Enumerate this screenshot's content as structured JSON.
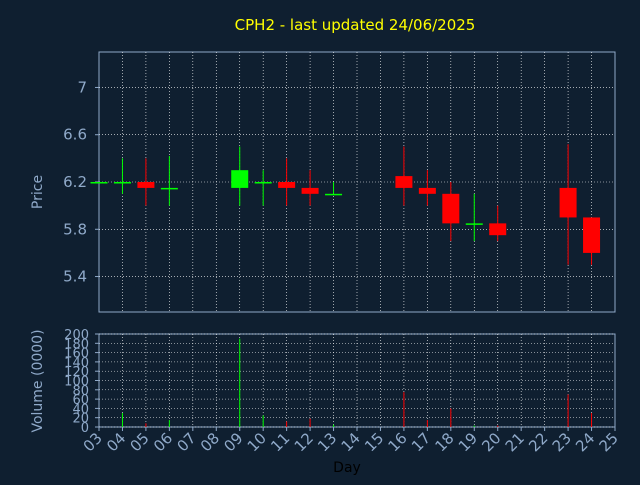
{
  "chart_data": {
    "type": "candlestick",
    "title": "CPH2 - last updated 24/06/2025",
    "xlabel": "Day",
    "ylabel_price": "Price",
    "ylabel_volume": "Volume (0000)",
    "x_ticks": [
      "03",
      "04",
      "05",
      "06",
      "07",
      "08",
      "09",
      "10",
      "11",
      "12",
      "13",
      "14",
      "15",
      "16",
      "17",
      "18",
      "19",
      "20",
      "21",
      "22",
      "23",
      "24",
      "25"
    ],
    "price_ylim": [
      5.1,
      7.3
    ],
    "price_ticks": [
      "5.4",
      "5.8",
      "6.2",
      "6.6",
      "7"
    ],
    "volume_ylim": [
      0,
      200
    ],
    "volume_ticks": [
      "0",
      "20",
      "40",
      "60",
      "80",
      "100",
      "120",
      "140",
      "160",
      "180",
      "200"
    ],
    "grid": true,
    "colors": {
      "up": "#00ff00",
      "down": "#ff0000",
      "background": "#0f1f30",
      "grid": "#ffffff",
      "axis": "#8fa9c9",
      "title": "#ffff00"
    },
    "candles": [
      {
        "day": "03",
        "open": 6.2,
        "high": 6.2,
        "low": 6.2,
        "close": 6.2,
        "volume": 0
      },
      {
        "day": "04",
        "open": 6.2,
        "high": 6.4,
        "low": 6.1,
        "close": 6.2,
        "volume": 30
      },
      {
        "day": "05",
        "open": 6.2,
        "high": 6.4,
        "low": 6.0,
        "close": 6.15,
        "volume": 8
      },
      {
        "day": "06",
        "open": 6.15,
        "high": 6.42,
        "low": 6.0,
        "close": 6.15,
        "volume": 15
      },
      {
        "day": "09",
        "open": 6.15,
        "high": 6.5,
        "low": 6.0,
        "close": 6.3,
        "volume": 190
      },
      {
        "day": "10",
        "open": 6.2,
        "high": 6.3,
        "low": 6.0,
        "close": 6.2,
        "volume": 25
      },
      {
        "day": "11",
        "open": 6.2,
        "high": 6.4,
        "low": 6.0,
        "close": 6.15,
        "volume": 12
      },
      {
        "day": "12",
        "open": 6.15,
        "high": 6.3,
        "low": 6.0,
        "close": 6.1,
        "volume": 18
      },
      {
        "day": "13",
        "open": 6.1,
        "high": 6.2,
        "low": 6.1,
        "close": 6.1,
        "volume": 5
      },
      {
        "day": "16",
        "open": 6.25,
        "high": 6.5,
        "low": 6.0,
        "close": 6.15,
        "volume": 75
      },
      {
        "day": "17",
        "open": 6.15,
        "high": 6.3,
        "low": 6.0,
        "close": 6.1,
        "volume": 15
      },
      {
        "day": "18",
        "open": 6.1,
        "high": 6.2,
        "low": 5.7,
        "close": 5.85,
        "volume": 40
      },
      {
        "day": "19",
        "open": 5.85,
        "high": 6.1,
        "low": 5.7,
        "close": 5.85,
        "volume": 3
      },
      {
        "day": "20",
        "open": 5.85,
        "high": 6.0,
        "low": 5.7,
        "close": 5.75,
        "volume": 3
      },
      {
        "day": "23",
        "open": 6.15,
        "high": 6.52,
        "low": 5.5,
        "close": 5.9,
        "volume": 70
      },
      {
        "day": "24",
        "open": 5.9,
        "high": 5.9,
        "low": 5.5,
        "close": 5.6,
        "volume": 30
      }
    ]
  }
}
